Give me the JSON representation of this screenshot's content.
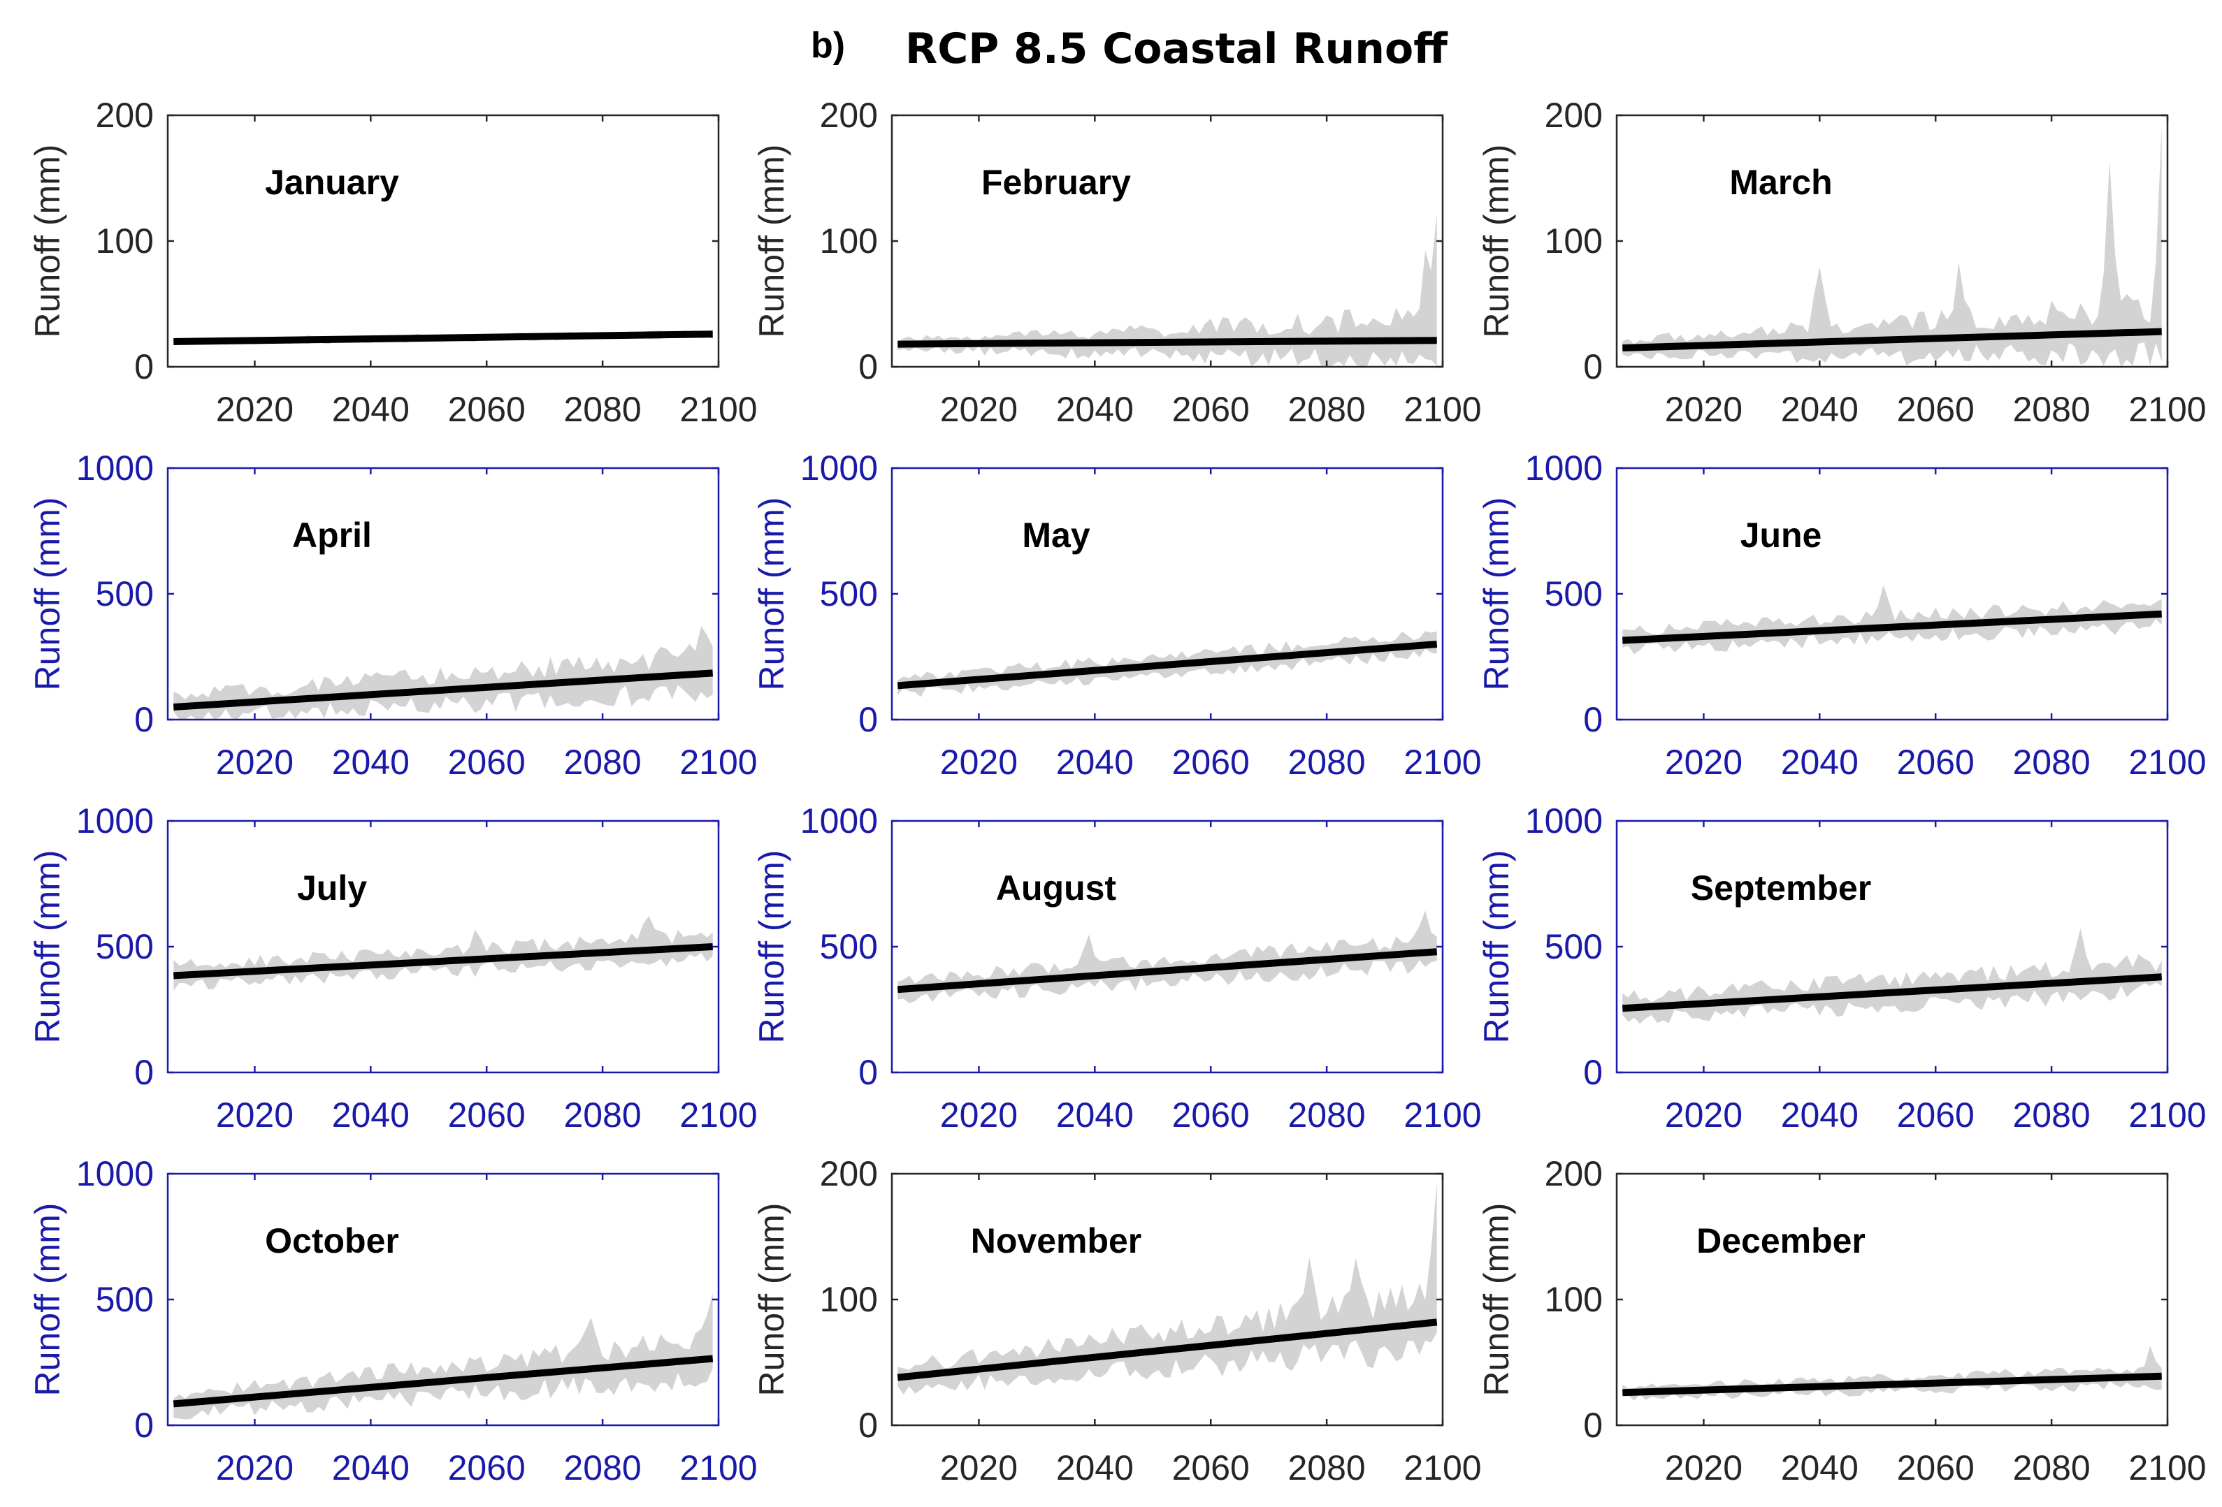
{
  "figure": {
    "panel_label": "b)",
    "title": "RCP 8.5 Coastal Runoff"
  },
  "colors": {
    "band": "#d3d3d3",
    "trend": "#000000",
    "axis_black": "#262626",
    "axis_blue": "#1a1aaa"
  },
  "chart_data": [
    {
      "type": "area",
      "title": "January",
      "xlabel": "",
      "ylabel": "Runoff (mm)",
      "axis_color": "black",
      "xlim": [
        2005,
        2100
      ],
      "ylim": [
        0,
        200
      ],
      "xticks": [
        2020,
        2040,
        2060,
        2080,
        2100
      ],
      "yticks": [
        0,
        100,
        200
      ],
      "x_range": [
        2006,
        2099
      ],
      "trend": [
        20,
        26
      ],
      "band_noise": 3,
      "band_growth": 1,
      "band_spikes": []
    },
    {
      "type": "area",
      "title": "February",
      "xlabel": "",
      "ylabel": "Runoff (mm)",
      "axis_color": "black",
      "xlim": [
        2005,
        2100
      ],
      "ylim": [
        0,
        200
      ],
      "xticks": [
        2020,
        2040,
        2060,
        2080,
        2100
      ],
      "yticks": [
        0,
        100,
        200
      ],
      "x_range": [
        2006,
        2099
      ],
      "trend": [
        18,
        21
      ],
      "band_noise": 5,
      "band_growth": 5,
      "band_spikes": [
        [
          2097,
          52
        ],
        [
          2099,
          75
        ]
      ]
    },
    {
      "type": "area",
      "title": "March",
      "xlabel": "",
      "ylabel": "Runoff (mm)",
      "axis_color": "black",
      "xlim": [
        2005,
        2100
      ],
      "ylim": [
        0,
        200
      ],
      "xticks": [
        2020,
        2040,
        2060,
        2080,
        2100
      ],
      "yticks": [
        0,
        100,
        200
      ],
      "x_range": [
        2006,
        2099
      ],
      "trend": [
        15,
        28
      ],
      "band_noise": 8,
      "band_growth": 3.5,
      "band_spikes": [
        [
          2040,
          55
        ],
        [
          2064,
          40
        ],
        [
          2090,
          115
        ],
        [
          2099,
          135
        ]
      ]
    },
    {
      "type": "area",
      "title": "April",
      "xlabel": "",
      "ylabel": "Runoff (mm)",
      "axis_color": "blue",
      "xlim": [
        2005,
        2100
      ],
      "ylim": [
        0,
        1000
      ],
      "xticks": [
        2020,
        2040,
        2060,
        2080,
        2100
      ],
      "yticks": [
        0,
        500,
        1000
      ],
      "x_range": [
        2006,
        2099
      ],
      "trend": [
        50,
        185
      ],
      "band_noise": 60,
      "band_growth": 1.8,
      "band_spikes": [
        [
          2097,
          120
        ]
      ]
    },
    {
      "type": "area",
      "title": "May",
      "xlabel": "",
      "ylabel": "Runoff (mm)",
      "axis_color": "blue",
      "xlim": [
        2005,
        2100
      ],
      "ylim": [
        0,
        1000
      ],
      "xticks": [
        2020,
        2040,
        2060,
        2080,
        2100
      ],
      "yticks": [
        0,
        500,
        1000
      ],
      "x_range": [
        2006,
        2099
      ],
      "trend": [
        135,
        300
      ],
      "band_noise": 45,
      "band_growth": 1.2,
      "band_spikes": []
    },
    {
      "type": "area",
      "title": "June",
      "xlabel": "",
      "ylabel": "Runoff (mm)",
      "axis_color": "blue",
      "xlim": [
        2005,
        2100
      ],
      "ylim": [
        0,
        1000
      ],
      "xticks": [
        2020,
        2040,
        2060,
        2080,
        2100
      ],
      "yticks": [
        0,
        500,
        1000
      ],
      "x_range": [
        2006,
        2099
      ],
      "trend": [
        315,
        420
      ],
      "band_noise": 55,
      "band_growth": 1.2,
      "band_spikes": [
        [
          2051,
          110
        ]
      ]
    },
    {
      "type": "area",
      "title": "July",
      "xlabel": "",
      "ylabel": "Runoff (mm)",
      "axis_color": "blue",
      "xlim": [
        2005,
        2100
      ],
      "ylim": [
        0,
        1000
      ],
      "xticks": [
        2020,
        2040,
        2060,
        2080,
        2100
      ],
      "yticks": [
        0,
        500,
        1000
      ],
      "x_range": [
        2006,
        2099
      ],
      "trend": [
        385,
        500
      ],
      "band_noise": 55,
      "band_growth": 1.2,
      "band_spikes": [
        [
          2058,
          90
        ],
        [
          2088,
          110
        ]
      ]
    },
    {
      "type": "area",
      "title": "August",
      "xlabel": "",
      "ylabel": "Runoff (mm)",
      "axis_color": "blue",
      "xlim": [
        2005,
        2100
      ],
      "ylim": [
        0,
        1000
      ],
      "xticks": [
        2020,
        2040,
        2060,
        2080,
        2100
      ],
      "yticks": [
        0,
        500,
        1000
      ],
      "x_range": [
        2006,
        2099
      ],
      "trend": [
        330,
        480
      ],
      "band_noise": 55,
      "band_growth": 1.3,
      "band_spikes": [
        [
          2039,
          100
        ],
        [
          2097,
          140
        ]
      ]
    },
    {
      "type": "area",
      "title": "September",
      "xlabel": "",
      "ylabel": "Runoff (mm)",
      "axis_color": "blue",
      "xlim": [
        2005,
        2100
      ],
      "ylim": [
        0,
        1000
      ],
      "xticks": [
        2020,
        2040,
        2060,
        2080,
        2100
      ],
      "yticks": [
        0,
        500,
        1000
      ],
      "x_range": [
        2006,
        2099
      ],
      "trend": [
        255,
        380
      ],
      "band_noise": 65,
      "band_growth": 1.3,
      "band_spikes": [
        [
          2085,
          120
        ]
      ]
    },
    {
      "type": "area",
      "title": "October",
      "xlabel": "",
      "ylabel": "Runoff (mm)",
      "axis_color": "blue",
      "xlim": [
        2005,
        2100
      ],
      "ylim": [
        0,
        1000
      ],
      "xticks": [
        2020,
        2040,
        2060,
        2080,
        2100
      ],
      "yticks": [
        0,
        500,
        1000
      ],
      "x_range": [
        2006,
        2099
      ],
      "trend": [
        85,
        265
      ],
      "band_noise": 60,
      "band_growth": 1.8,
      "band_spikes": [
        [
          2078,
          140
        ],
        [
          2099,
          180
        ]
      ]
    },
    {
      "type": "area",
      "title": "November",
      "xlabel": "",
      "ylabel": "Runoff (mm)",
      "axis_color": "black",
      "xlim": [
        2005,
        2100
      ],
      "ylim": [
        0,
        200
      ],
      "xticks": [
        2020,
        2040,
        2060,
        2080,
        2100
      ],
      "yticks": [
        0,
        100,
        200
      ],
      "x_range": [
        2006,
        2099
      ],
      "trend": [
        38,
        82
      ],
      "band_noise": 12,
      "band_growth": 2.5,
      "band_spikes": [
        [
          2077,
          55
        ],
        [
          2085,
          50
        ],
        [
          2099,
          90
        ]
      ]
    },
    {
      "type": "area",
      "title": "December",
      "xlabel": "",
      "ylabel": "Runoff (mm)",
      "axis_color": "black",
      "xlim": [
        2005,
        2100
      ],
      "ylim": [
        0,
        200
      ],
      "xticks": [
        2020,
        2040,
        2060,
        2080,
        2100
      ],
      "yticks": [
        0,
        100,
        200
      ],
      "x_range": [
        2006,
        2099
      ],
      "trend": [
        26,
        39
      ],
      "band_noise": 6,
      "band_growth": 1.6,
      "band_spikes": [
        [
          2097,
          15
        ]
      ]
    }
  ]
}
